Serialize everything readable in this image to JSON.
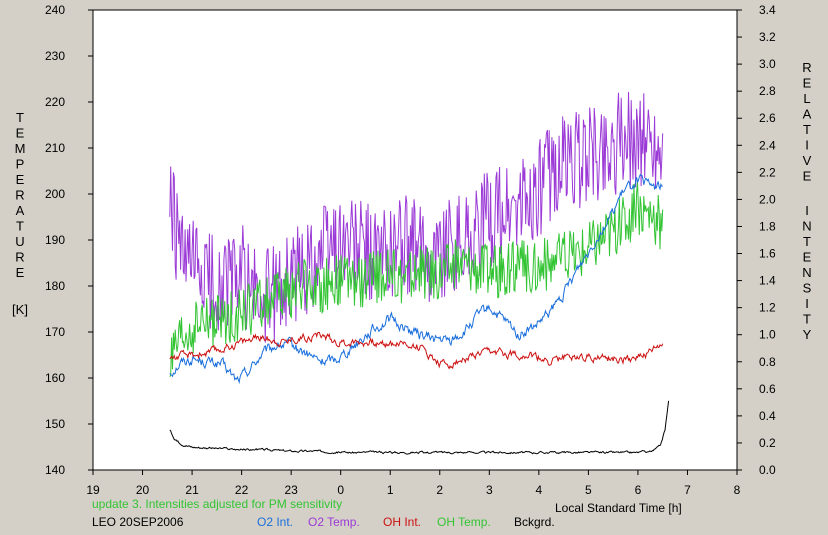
{
  "chart_data": {
    "type": "line",
    "left_axis": {
      "label_letters": [
        "T",
        "E",
        "M",
        "P",
        "E",
        "R",
        "A",
        "T",
        "U",
        "R",
        "E"
      ],
      "unit": "[K]",
      "ylim": [
        140,
        240
      ],
      "ticks": [
        140,
        150,
        160,
        170,
        180,
        190,
        200,
        210,
        220,
        230,
        240
      ],
      "tick_labels": [
        "140",
        "150",
        "160",
        "170",
        "180",
        "190",
        "200",
        "210",
        "220",
        "230",
        "240"
      ]
    },
    "right_axis": {
      "label_word1": [
        "R",
        "E",
        "L",
        "A",
        "T",
        "I",
        "V",
        "E"
      ],
      "label_word2": [
        "I",
        "N",
        "T",
        "E",
        "N",
        "S",
        "I",
        "T",
        "Y"
      ],
      "ylim": [
        0.0,
        3.4
      ],
      "ticks": [
        0,
        0.2,
        0.4,
        0.6,
        0.8,
        1.0,
        1.2,
        1.4,
        1.6,
        1.8,
        2.0,
        2.2,
        2.4,
        2.6,
        2.8,
        3.0,
        3.2,
        3.4
      ],
      "tick_labels": [
        "0.0",
        "0.2",
        "0.4",
        "0.6",
        "0.8",
        "1.0",
        "1.2",
        "1.4",
        "1.6",
        "1.8",
        "2.0",
        "2.2",
        "2.4",
        "2.6",
        "2.8",
        "3.0",
        "3.2",
        "3.4"
      ]
    },
    "x_axis": {
      "label": "Local Standard Time [h]",
      "xlim": [
        19,
        32
      ],
      "ticks": [
        19,
        20,
        21,
        22,
        23,
        24,
        25,
        26,
        27,
        28,
        29,
        30,
        31,
        32
      ],
      "tick_labels": [
        "19",
        "20",
        "21",
        "22",
        "23",
        "0",
        "1",
        "2",
        "3",
        "4",
        "5",
        "6",
        "7",
        "8"
      ]
    },
    "note": "update 3. Intensities adjusted for PM sensitivity",
    "station": "LEO 20SEP2006",
    "series": [
      {
        "name": "O2 Int.",
        "color": "#1a6fdc",
        "axis": "right",
        "noise": 0.04,
        "x": [
          20.55,
          20.8,
          21.0,
          21.3,
          21.6,
          21.9,
          22.1,
          22.4,
          22.7,
          23.0,
          23.3,
          23.6,
          23.9,
          24.2,
          24.5,
          24.8,
          25.0,
          25.3,
          25.6,
          25.9,
          26.2,
          26.5,
          26.8,
          27.0,
          27.3,
          27.6,
          27.9,
          28.2,
          28.5,
          28.8,
          29.1,
          29.4,
          29.7,
          30.0,
          30.2,
          30.5
        ],
        "y": [
          0.72,
          0.8,
          0.82,
          0.8,
          0.78,
          0.66,
          0.72,
          0.85,
          0.92,
          0.92,
          0.86,
          0.8,
          0.82,
          0.9,
          1.0,
          1.07,
          1.12,
          1.05,
          1.0,
          0.97,
          0.95,
          1.02,
          1.15,
          1.2,
          1.1,
          1.0,
          1.05,
          1.15,
          1.3,
          1.5,
          1.68,
          1.85,
          2.05,
          2.15,
          2.1,
          2.1
        ]
      },
      {
        "name": "O2 Temp.",
        "color": "#9b3ad6",
        "axis": "left",
        "noise": 11,
        "x": [
          20.55,
          20.8,
          21.2,
          21.6,
          22.0,
          22.4,
          22.8,
          23.2,
          23.6,
          24.0,
          24.4,
          24.8,
          25.2,
          25.6,
          26.0,
          26.4,
          26.8,
          27.0,
          27.4,
          27.8,
          28.2,
          28.6,
          29.0,
          29.4,
          29.8,
          30.2,
          30.5
        ],
        "y": [
          198,
          185,
          182,
          180,
          183,
          176,
          180,
          183,
          188,
          190,
          188,
          186,
          190,
          187,
          188,
          190,
          192,
          195,
          196,
          198,
          204,
          207,
          208,
          210,
          212,
          212,
          210
        ]
      },
      {
        "name": "OH Int.",
        "color": "#cc1111",
        "axis": "right",
        "noise": 0.03,
        "x": [
          20.55,
          21.0,
          21.5,
          22.0,
          22.4,
          22.8,
          23.2,
          23.6,
          24.0,
          24.4,
          24.8,
          25.2,
          25.6,
          26.0,
          26.2,
          26.6,
          27.0,
          27.4,
          27.8,
          28.2,
          28.6,
          29.0,
          29.4,
          29.8,
          30.2,
          30.5
        ],
        "y": [
          0.83,
          0.85,
          0.88,
          0.95,
          0.98,
          0.95,
          0.98,
          1.0,
          0.94,
          0.95,
          0.93,
          0.94,
          0.91,
          0.79,
          0.78,
          0.83,
          0.87,
          0.86,
          0.85,
          0.8,
          0.84,
          0.84,
          0.82,
          0.82,
          0.86,
          0.92
        ]
      },
      {
        "name": "OH Temp.",
        "color": "#33c433",
        "axis": "left",
        "noise": 6,
        "x": [
          20.55,
          20.8,
          21.2,
          21.6,
          22.0,
          22.4,
          22.8,
          23.2,
          23.6,
          24.0,
          24.4,
          24.8,
          25.2,
          25.6,
          26.0,
          26.4,
          26.8,
          27.2,
          27.6,
          28.0,
          28.4,
          28.8,
          29.2,
          29.6,
          30.0,
          30.3,
          30.5
        ],
        "y": [
          163,
          168,
          172,
          172,
          174,
          176,
          178,
          180,
          180,
          181,
          181,
          182,
          182,
          183,
          183,
          185,
          184,
          183,
          184,
          184,
          186,
          187,
          190,
          193,
          197,
          196,
          192
        ]
      },
      {
        "name": "Bckgrd.",
        "color": "#000000",
        "axis": "right",
        "noise": 0.008,
        "x": [
          20.55,
          20.65,
          20.8,
          21.0,
          21.5,
          22.0,
          22.5,
          23.0,
          23.5,
          24.0,
          24.5,
          25.0,
          25.5,
          26.0,
          26.5,
          27.0,
          27.5,
          28.0,
          28.5,
          29.0,
          29.5,
          30.0,
          30.3,
          30.45,
          30.55,
          30.62
        ],
        "y": [
          0.3,
          0.22,
          0.19,
          0.17,
          0.16,
          0.15,
          0.15,
          0.14,
          0.14,
          0.13,
          0.13,
          0.13,
          0.13,
          0.13,
          0.13,
          0.13,
          0.13,
          0.13,
          0.13,
          0.13,
          0.13,
          0.13,
          0.14,
          0.18,
          0.3,
          0.52
        ]
      }
    ]
  }
}
